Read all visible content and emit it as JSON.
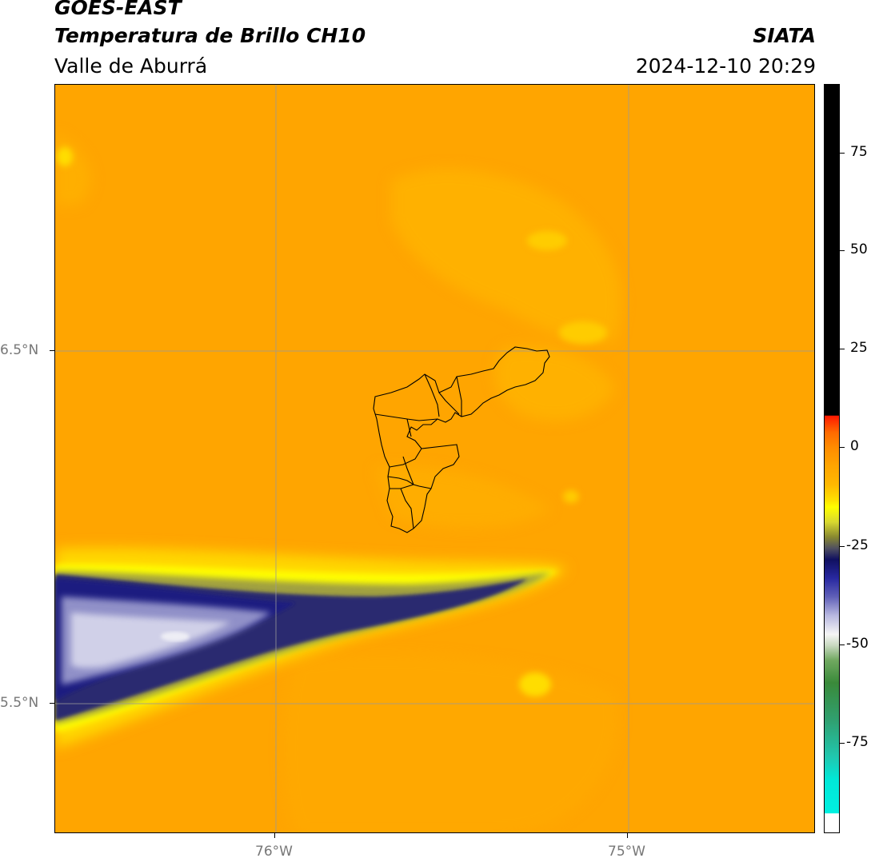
{
  "header": {
    "satellite": "GOES-EAST",
    "product": "Temperatura de Brillo CH10",
    "region": "Valle de Aburrá",
    "agency": "SIATA",
    "datetime": "2024-12-10 20:29"
  },
  "map": {
    "background_color": "#FFA500",
    "grid_color": "#999999",
    "longitudes": [
      "76°W",
      "75°W"
    ],
    "latitudes": [
      "6.5°N",
      "5.5°N"
    ],
    "outline": "municipal boundaries of Valle de Aburrá"
  },
  "colorbar": {
    "tick_labels": [
      "75",
      "50",
      "25",
      "0",
      "-25",
      "-50",
      "-75"
    ],
    "tick_values": [
      75,
      50,
      25,
      0,
      -25,
      -50,
      -75
    ],
    "range": [
      -92,
      92
    ],
    "colors": {
      "top_black": "#000000",
      "red": "#FF1A00",
      "orange": "#FF8C00",
      "amber": "#FFB000",
      "yellow": "#FFFF00",
      "olive": "#888830",
      "navy": "#101060",
      "lavender": "#B8B8E0",
      "white": "#F5F5F5",
      "green": "#3A8A3A",
      "cyan": "#00E8D8",
      "bottom_white": "#FFFFFF"
    }
  }
}
